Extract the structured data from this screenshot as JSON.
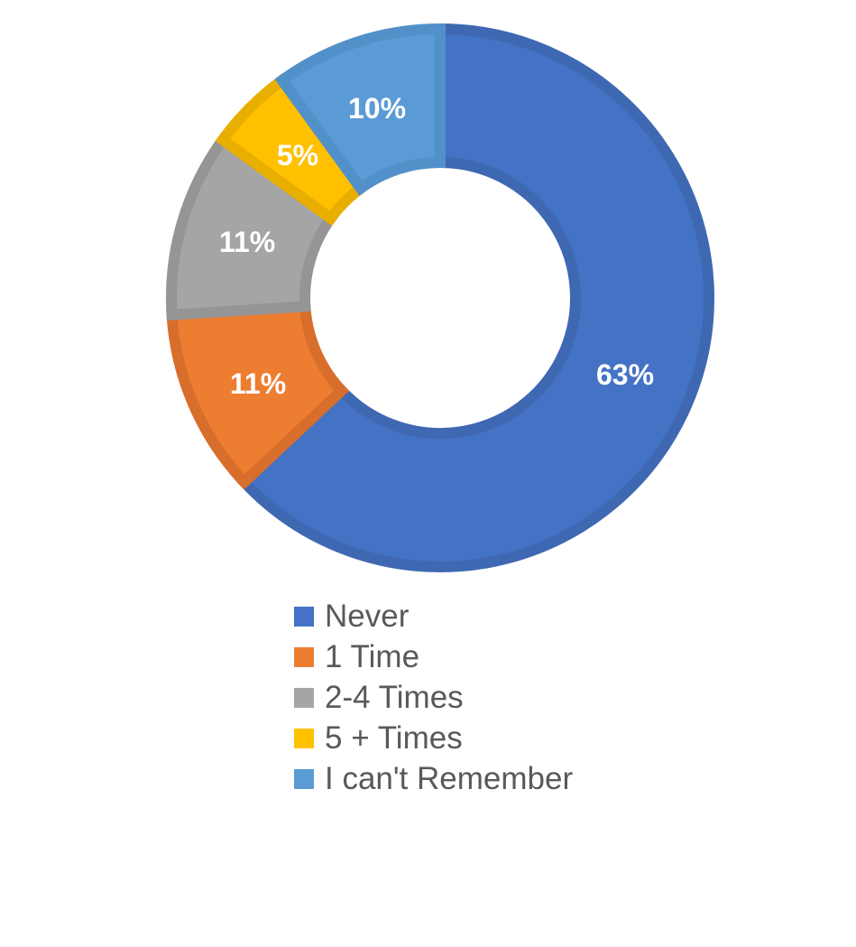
{
  "chart_data": {
    "type": "pie",
    "variant": "doughnut",
    "categories": [
      "Never",
      "1 Time",
      "2-4 Times",
      "5 + Times",
      "I can't Remember"
    ],
    "values": [
      63,
      11,
      11,
      5,
      10
    ],
    "value_labels": [
      "63%",
      "11%",
      "11%",
      "5%",
      "10%"
    ],
    "colors": [
      "#4472C4",
      "#ED7D31",
      "#A5A5A5",
      "#FFC000",
      "#5B9BD5"
    ],
    "border_colors": [
      "#3F68B2",
      "#D86E2B",
      "#959595",
      "#E8AE00",
      "#5290C9"
    ],
    "legend_position": "bottom"
  }
}
